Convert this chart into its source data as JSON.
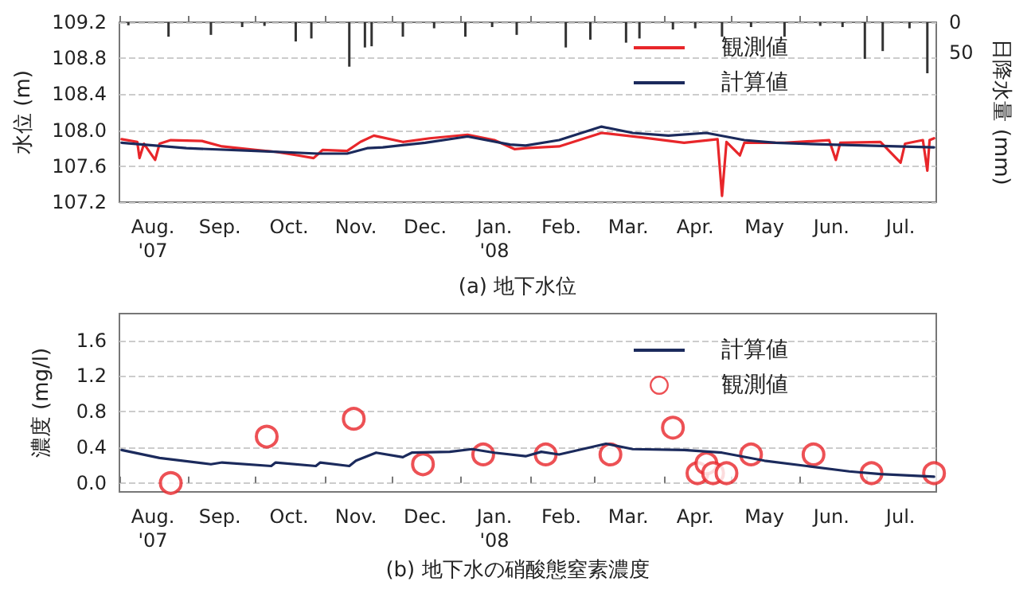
{
  "chart_data": [
    {
      "type": "line",
      "title": "(a) 地下水位",
      "ylabel": "水位 (m)",
      "y2label": "日降水量 (mm)",
      "xlim": [
        "2007-08-01",
        "2008-08-01"
      ],
      "xticks": [
        {
          "value": "2007-08-01",
          "label": null
        },
        {
          "value": "2007-08-16",
          "label": "Aug.\n'07"
        },
        {
          "value": "2007-09-01",
          "label": null
        },
        {
          "value": "2007-09-15",
          "label": "Sep."
        },
        {
          "value": "2007-10-01",
          "label": null
        },
        {
          "value": "2007-10-16",
          "label": "Oct."
        },
        {
          "value": "2007-11-01",
          "label": null
        },
        {
          "value": "2007-11-15",
          "label": "Nov."
        },
        {
          "value": "2007-12-01",
          "label": null
        },
        {
          "value": "2007-12-16",
          "label": "Dec."
        },
        {
          "value": "2008-01-01",
          "label": null
        },
        {
          "value": "2008-01-16",
          "label": "Jan.\n'08"
        },
        {
          "value": "2008-02-01",
          "label": null
        },
        {
          "value": "2008-02-15",
          "label": "Feb."
        },
        {
          "value": "2008-03-01",
          "label": null
        },
        {
          "value": "2008-03-16",
          "label": "Mar."
        },
        {
          "value": "2008-04-01",
          "label": null
        },
        {
          "value": "2008-04-15",
          "label": "Apr."
        },
        {
          "value": "2008-05-01",
          "label": null
        },
        {
          "value": "2008-05-16",
          "label": "May"
        },
        {
          "value": "2008-06-01",
          "label": null
        },
        {
          "value": "2008-06-15",
          "label": "Jun."
        },
        {
          "value": "2008-07-01",
          "label": null
        },
        {
          "value": "2008-07-16",
          "label": "Jul."
        }
      ],
      "ylim": [
        107.2,
        109.2
      ],
      "yticks": [
        107.2,
        107.6,
        {
          "value": 108,
          "label": "108.0"
        },
        108.4,
        108.8,
        109.2
      ],
      "y2lim": [
        300,
        0
      ],
      "y2ticks": [
        0,
        50
      ],
      "grid": "y",
      "legend": "top right",
      "series": [
        {
          "name": "観測値",
          "color": "#e8262a",
          "line_style": "solid",
          "marker": "none",
          "x": [
            "2007-08-02",
            "2007-08-09",
            "2007-08-10",
            "2007-08-12",
            "2007-08-17",
            "2007-08-19",
            "2007-08-24",
            "2007-09-07",
            "2007-09-16",
            "2007-10-01",
            "2007-10-10",
            "2007-10-20",
            "2007-10-27",
            "2007-10-31",
            "2007-11-11",
            "2007-11-17",
            "2007-11-23",
            "2007-12-06",
            "2007-12-18",
            "2008-01-04",
            "2008-01-16",
            "2008-01-25",
            "2008-01-30",
            "2008-02-14",
            "2008-03-04",
            "2008-03-22",
            "2008-04-10",
            "2008-04-25",
            "2008-04-27",
            "2008-04-29",
            "2008-05-05",
            "2008-05-07",
            "2008-05-25",
            "2008-06-14",
            "2008-06-17",
            "2008-06-19",
            "2008-07-07",
            "2008-07-16",
            "2008-07-18",
            "2008-07-26",
            "2008-07-28",
            "2008-07-29",
            "2008-07-31"
          ],
          "values": [
            107.9,
            107.87,
            107.69,
            107.85,
            107.67,
            107.85,
            107.89,
            107.88,
            107.82,
            107.78,
            107.76,
            107.72,
            107.69,
            107.78,
            107.77,
            107.87,
            107.94,
            107.87,
            107.91,
            107.95,
            107.89,
            107.79,
            107.8,
            107.82,
            107.97,
            107.92,
            107.86,
            107.9,
            107.27,
            107.87,
            107.72,
            107.86,
            107.86,
            107.89,
            107.67,
            107.86,
            107.87,
            107.64,
            107.85,
            107.89,
            107.55,
            107.89,
            107.91
          ]
        },
        {
          "name": "計算値",
          "color": "#1b2a5c",
          "line_style": "solid",
          "marker": "none",
          "x": [
            "2007-08-02",
            "2007-08-31",
            "2007-10-01",
            "2007-10-29",
            "2007-11-11",
            "2007-11-20",
            "2007-11-27",
            "2007-12-16",
            "2008-01-04",
            "2008-01-23",
            "2008-01-30",
            "2008-02-14",
            "2008-03-04",
            "2008-03-18",
            "2008-04-03",
            "2008-04-20",
            "2008-05-07",
            "2008-05-21",
            "2008-06-14",
            "2008-07-31"
          ],
          "values": [
            107.86,
            107.8,
            107.77,
            107.74,
            107.74,
            107.8,
            107.81,
            107.86,
            107.93,
            107.84,
            107.83,
            107.89,
            108.04,
            107.97,
            107.94,
            107.97,
            107.89,
            107.86,
            107.84,
            107.81
          ]
        },
        {
          "type": "bar",
          "axis": "y2",
          "color": "#333333",
          "x": [
            "2007-08-05",
            "2007-08-23",
            "2007-09-11",
            "2007-09-25",
            "2007-10-05",
            "2007-10-19",
            "2007-10-26",
            "2007-11-12",
            "2007-11-19",
            "2007-11-22",
            "2007-12-06",
            "2007-12-20",
            "2008-01-03",
            "2008-01-15",
            "2008-01-26",
            "2008-02-17",
            "2008-02-28",
            "2008-03-15",
            "2008-03-21",
            "2008-04-05",
            "2008-04-15",
            "2008-04-27",
            "2008-05-10",
            "2008-05-25",
            "2008-06-10",
            "2008-06-20",
            "2008-06-30",
            "2008-07-08",
            "2008-07-20",
            "2008-07-28"
          ],
          "values": [
            5,
            24,
            21,
            8,
            6,
            32,
            27,
            74,
            42,
            40,
            24,
            10,
            24,
            8,
            21,
            42,
            29,
            34,
            27,
            12,
            10,
            24,
            8,
            24,
            6,
            8,
            61,
            48,
            10,
            85
          ]
        }
      ]
    },
    {
      "type": "line",
      "title": "(b) 地下水の硝酸態窒素濃度",
      "ylabel": "濃度 (mg/l)",
      "xlim": [
        "2007-08-01",
        "2008-08-01"
      ],
      "xticks": [
        {
          "value": "2007-08-01",
          "label": null
        },
        {
          "value": "2007-08-16",
          "label": "Aug.\n'07"
        },
        {
          "value": "2007-09-01",
          "label": null
        },
        {
          "value": "2007-09-15",
          "label": "Sep."
        },
        {
          "value": "2007-10-01",
          "label": null
        },
        {
          "value": "2007-10-16",
          "label": "Oct."
        },
        {
          "value": "2007-11-01",
          "label": null
        },
        {
          "value": "2007-11-15",
          "label": "Nov."
        },
        {
          "value": "2007-12-01",
          "label": null
        },
        {
          "value": "2007-12-16",
          "label": "Dec."
        },
        {
          "value": "2008-01-01",
          "label": null
        },
        {
          "value": "2008-01-16",
          "label": "Jan.\n'08"
        },
        {
          "value": "2008-02-01",
          "label": null
        },
        {
          "value": "2008-02-15",
          "label": "Feb."
        },
        {
          "value": "2008-03-01",
          "label": null
        },
        {
          "value": "2008-03-16",
          "label": "Mar."
        },
        {
          "value": "2008-04-01",
          "label": null
        },
        {
          "value": "2008-04-15",
          "label": "Apr."
        },
        {
          "value": "2008-05-01",
          "label": null
        },
        {
          "value": "2008-05-16",
          "label": "May"
        },
        {
          "value": "2008-06-01",
          "label": null
        },
        {
          "value": "2008-06-15",
          "label": "Jun."
        },
        {
          "value": "2008-07-01",
          "label": null
        },
        {
          "value": "2008-07-16",
          "label": "Jul."
        }
      ],
      "ylim": [
        -0.1,
        1.9
      ],
      "yticks": [
        {
          "value": 0,
          "label": "0.0"
        },
        0.4,
        0.8,
        1.2,
        1.6
      ],
      "grid": "y",
      "legend": "top right",
      "series": [
        {
          "name": "計算値",
          "color": "#1b2a5c",
          "line_style": "solid",
          "marker": "none",
          "x": [
            "2007-08-02",
            "2007-08-19",
            "2007-09-11",
            "2007-09-16",
            "2007-10-08",
            "2007-10-10",
            "2007-10-28",
            "2007-10-30",
            "2007-11-12",
            "2007-11-15",
            "2007-11-24",
            "2007-12-06",
            "2007-12-10",
            "2007-12-27",
            "2008-01-06",
            "2008-01-16",
            "2008-01-30",
            "2008-02-06",
            "2008-02-14",
            "2008-03-06",
            "2008-03-18",
            "2008-04-10",
            "2008-04-27",
            "2008-05-16",
            "2008-06-04",
            "2008-06-23",
            "2008-07-07",
            "2008-07-31"
          ],
          "values": [
            0.37,
            0.28,
            0.21,
            0.23,
            0.19,
            0.23,
            0.19,
            0.23,
            0.19,
            0.25,
            0.34,
            0.29,
            0.34,
            0.35,
            0.38,
            0.34,
            0.3,
            0.35,
            0.32,
            0.44,
            0.38,
            0.37,
            0.34,
            0.25,
            0.19,
            0.13,
            0.1,
            0.07
          ]
        },
        {
          "name": "観測値",
          "type": "scatter",
          "color": "#e8262a",
          "marker": "circle",
          "x": [
            "2007-08-24",
            "2007-10-06",
            "2007-11-14",
            "2007-12-15",
            "2008-01-11",
            "2008-02-08",
            "2008-03-08",
            "2008-04-05",
            "2008-04-16",
            "2008-04-20",
            "2008-04-23",
            "2008-04-29",
            "2008-05-10",
            "2008-06-07",
            "2008-07-03",
            "2008-07-31"
          ],
          "values": [
            0.0,
            0.52,
            0.72,
            0.21,
            0.32,
            0.32,
            0.32,
            0.62,
            0.11,
            0.22,
            0.11,
            0.11,
            0.32,
            0.32,
            0.11,
            0.11
          ]
        }
      ]
    }
  ]
}
